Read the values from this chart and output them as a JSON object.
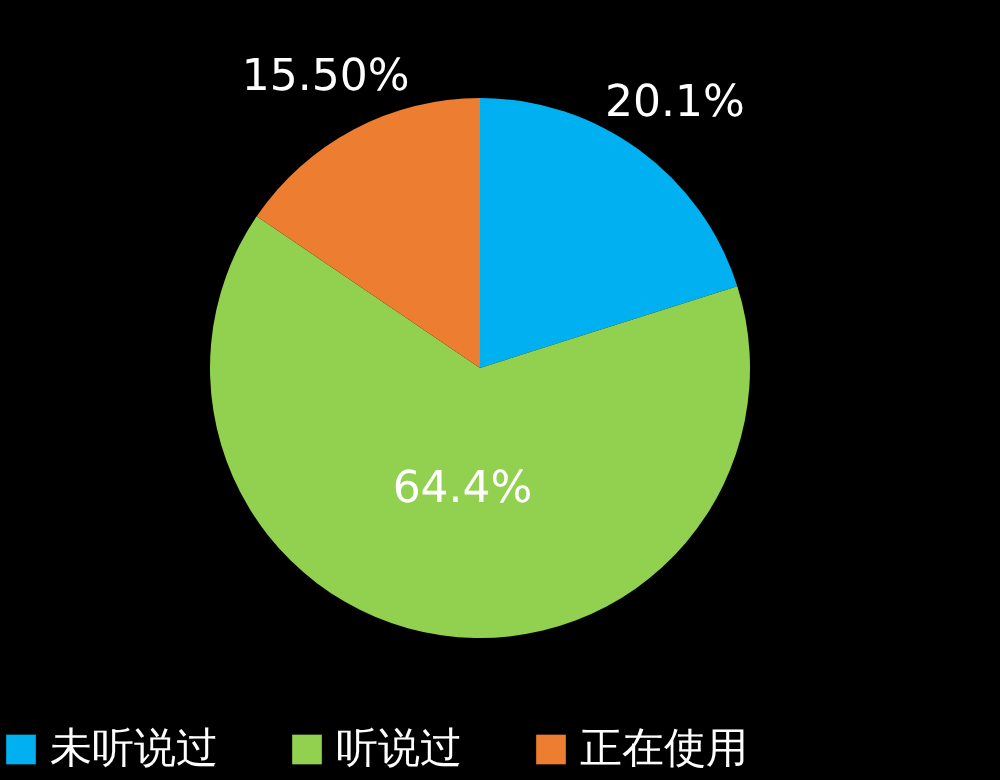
{
  "chart_data": {
    "type": "pie",
    "categories": [
      "未听说过",
      "听说过",
      "正在使用"
    ],
    "values": [
      20.1,
      64.4,
      15.5
    ],
    "value_labels": [
      "20.1%",
      "64.4%",
      "15.50%"
    ],
    "colors": [
      "#00b0f0",
      "#92d050",
      "#ed7d31"
    ],
    "legend": "bottom"
  }
}
